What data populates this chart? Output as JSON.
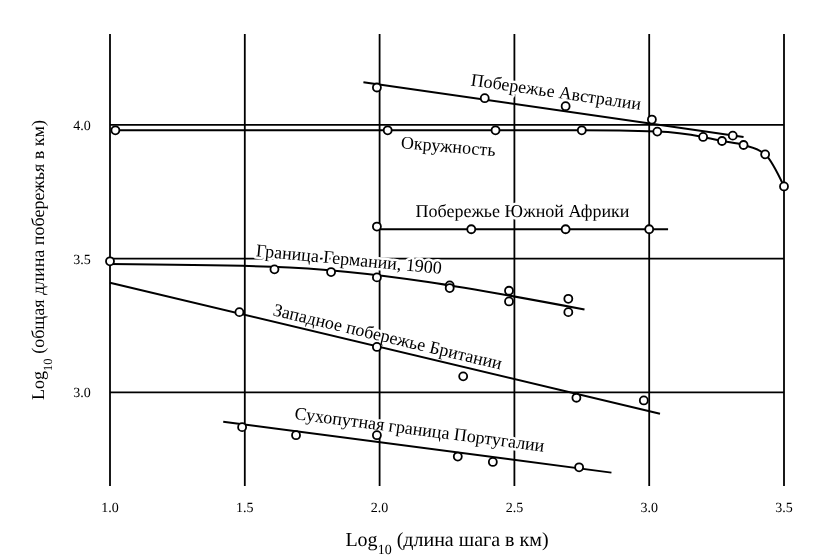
{
  "chart_data": {
    "type": "line",
    "xlabel": "Log$_{10}$ (длина шага в км)",
    "ylabel": "Log$_{10}$ (общая длина побережья в км)",
    "xlim": [
      1.0,
      3.5
    ],
    "ylim": [
      2.65,
      4.34
    ],
    "xticks": [
      {
        "value": 1,
        "label": "1.0"
      },
      {
        "value": 1.5,
        "label": "1.5"
      },
      {
        "value": 2,
        "label": "2.0"
      },
      {
        "value": 2.5,
        "label": "2.5"
      },
      {
        "value": 3,
        "label": "3.0"
      },
      {
        "value": 3.5,
        "label": "3.5"
      }
    ],
    "yticks": [
      {
        "value": 3,
        "label": "3.0"
      },
      {
        "value": 3.5,
        "label": "3.5"
      },
      {
        "value": 4,
        "label": "4.0"
      }
    ],
    "grid": true,
    "series": [
      {
        "name": "Побережье Австралии",
        "color": "#000000",
        "x": [
          1.94,
          3.35
        ],
        "values": [
          4.16,
          3.955
        ]
      },
      {
        "type": "scatter",
        "marker": "circle",
        "color": "#000000",
        "x": [
          1.99,
          2.39,
          2.69,
          3.01,
          3.31
        ],
        "values": [
          4.14,
          4.1,
          4.07,
          4.02,
          3.96
        ]
      },
      {
        "name": "Окружность",
        "color": "#000000",
        "x": [
          1.02,
          2.03,
          2.43,
          2.75,
          3.03,
          3.2,
          3.27,
          3.35,
          3.43,
          3.5
        ],
        "values": [
          3.98,
          3.98,
          3.98,
          3.98,
          3.975,
          3.955,
          3.94,
          3.925,
          3.89,
          3.77
        ]
      },
      {
        "type": "scatter",
        "marker": "circle",
        "color": "#000000",
        "x": [
          1.02,
          2.03,
          2.43,
          2.75,
          3.03,
          3.2,
          3.27,
          3.35,
          3.43,
          3.5
        ],
        "values": [
          3.98,
          3.98,
          3.98,
          3.98,
          3.975,
          3.955,
          3.94,
          3.925,
          3.89,
          3.77
        ]
      },
      {
        "name": "Побережье Южной Африки",
        "color": "#000000",
        "x": [
          1.99,
          3.07
        ],
        "values": [
          3.61,
          3.61
        ]
      },
      {
        "type": "scatter",
        "marker": "circle",
        "color": "#000000",
        "x": [
          1.99,
          2.34,
          2.69,
          3.0
        ],
        "values": [
          3.62,
          3.61,
          3.61,
          3.61
        ]
      },
      {
        "name": "Граница Германии, 1900",
        "color": "#000000",
        "x": [
          1.0,
          1.6,
          2.76
        ],
        "values": [
          3.48,
          3.47,
          3.31
        ]
      },
      {
        "type": "scatter",
        "marker": "circle",
        "color": "#000000",
        "x": [
          1.0,
          1.61,
          1.82,
          1.99,
          2.26,
          2.26,
          2.48,
          2.48,
          2.7,
          2.7
        ],
        "values": [
          3.49,
          3.46,
          3.45,
          3.43,
          3.4,
          3.39,
          3.38,
          3.34,
          3.35,
          3.3
        ]
      },
      {
        "name": "Западное побережье Британии",
        "color": "#000000",
        "x": [
          1.0,
          3.04
        ],
        "values": [
          3.41,
          2.92
        ]
      },
      {
        "type": "scatter",
        "marker": "circle",
        "color": "#000000",
        "x": [
          1.48,
          1.99,
          2.31,
          2.73,
          2.98
        ],
        "values": [
          3.3,
          3.17,
          3.06,
          2.98,
          2.97
        ]
      },
      {
        "name": "Сухопутная граница Португалии",
        "color": "#000000",
        "x": [
          1.42,
          2.86
        ],
        "values": [
          2.89,
          2.7
        ]
      },
      {
        "type": "scatter",
        "marker": "circle",
        "color": "#000000",
        "x": [
          1.49,
          1.69,
          1.99,
          2.29,
          2.42,
          2.74
        ],
        "values": [
          2.87,
          2.84,
          2.84,
          2.76,
          2.74,
          2.72
        ]
      }
    ]
  }
}
